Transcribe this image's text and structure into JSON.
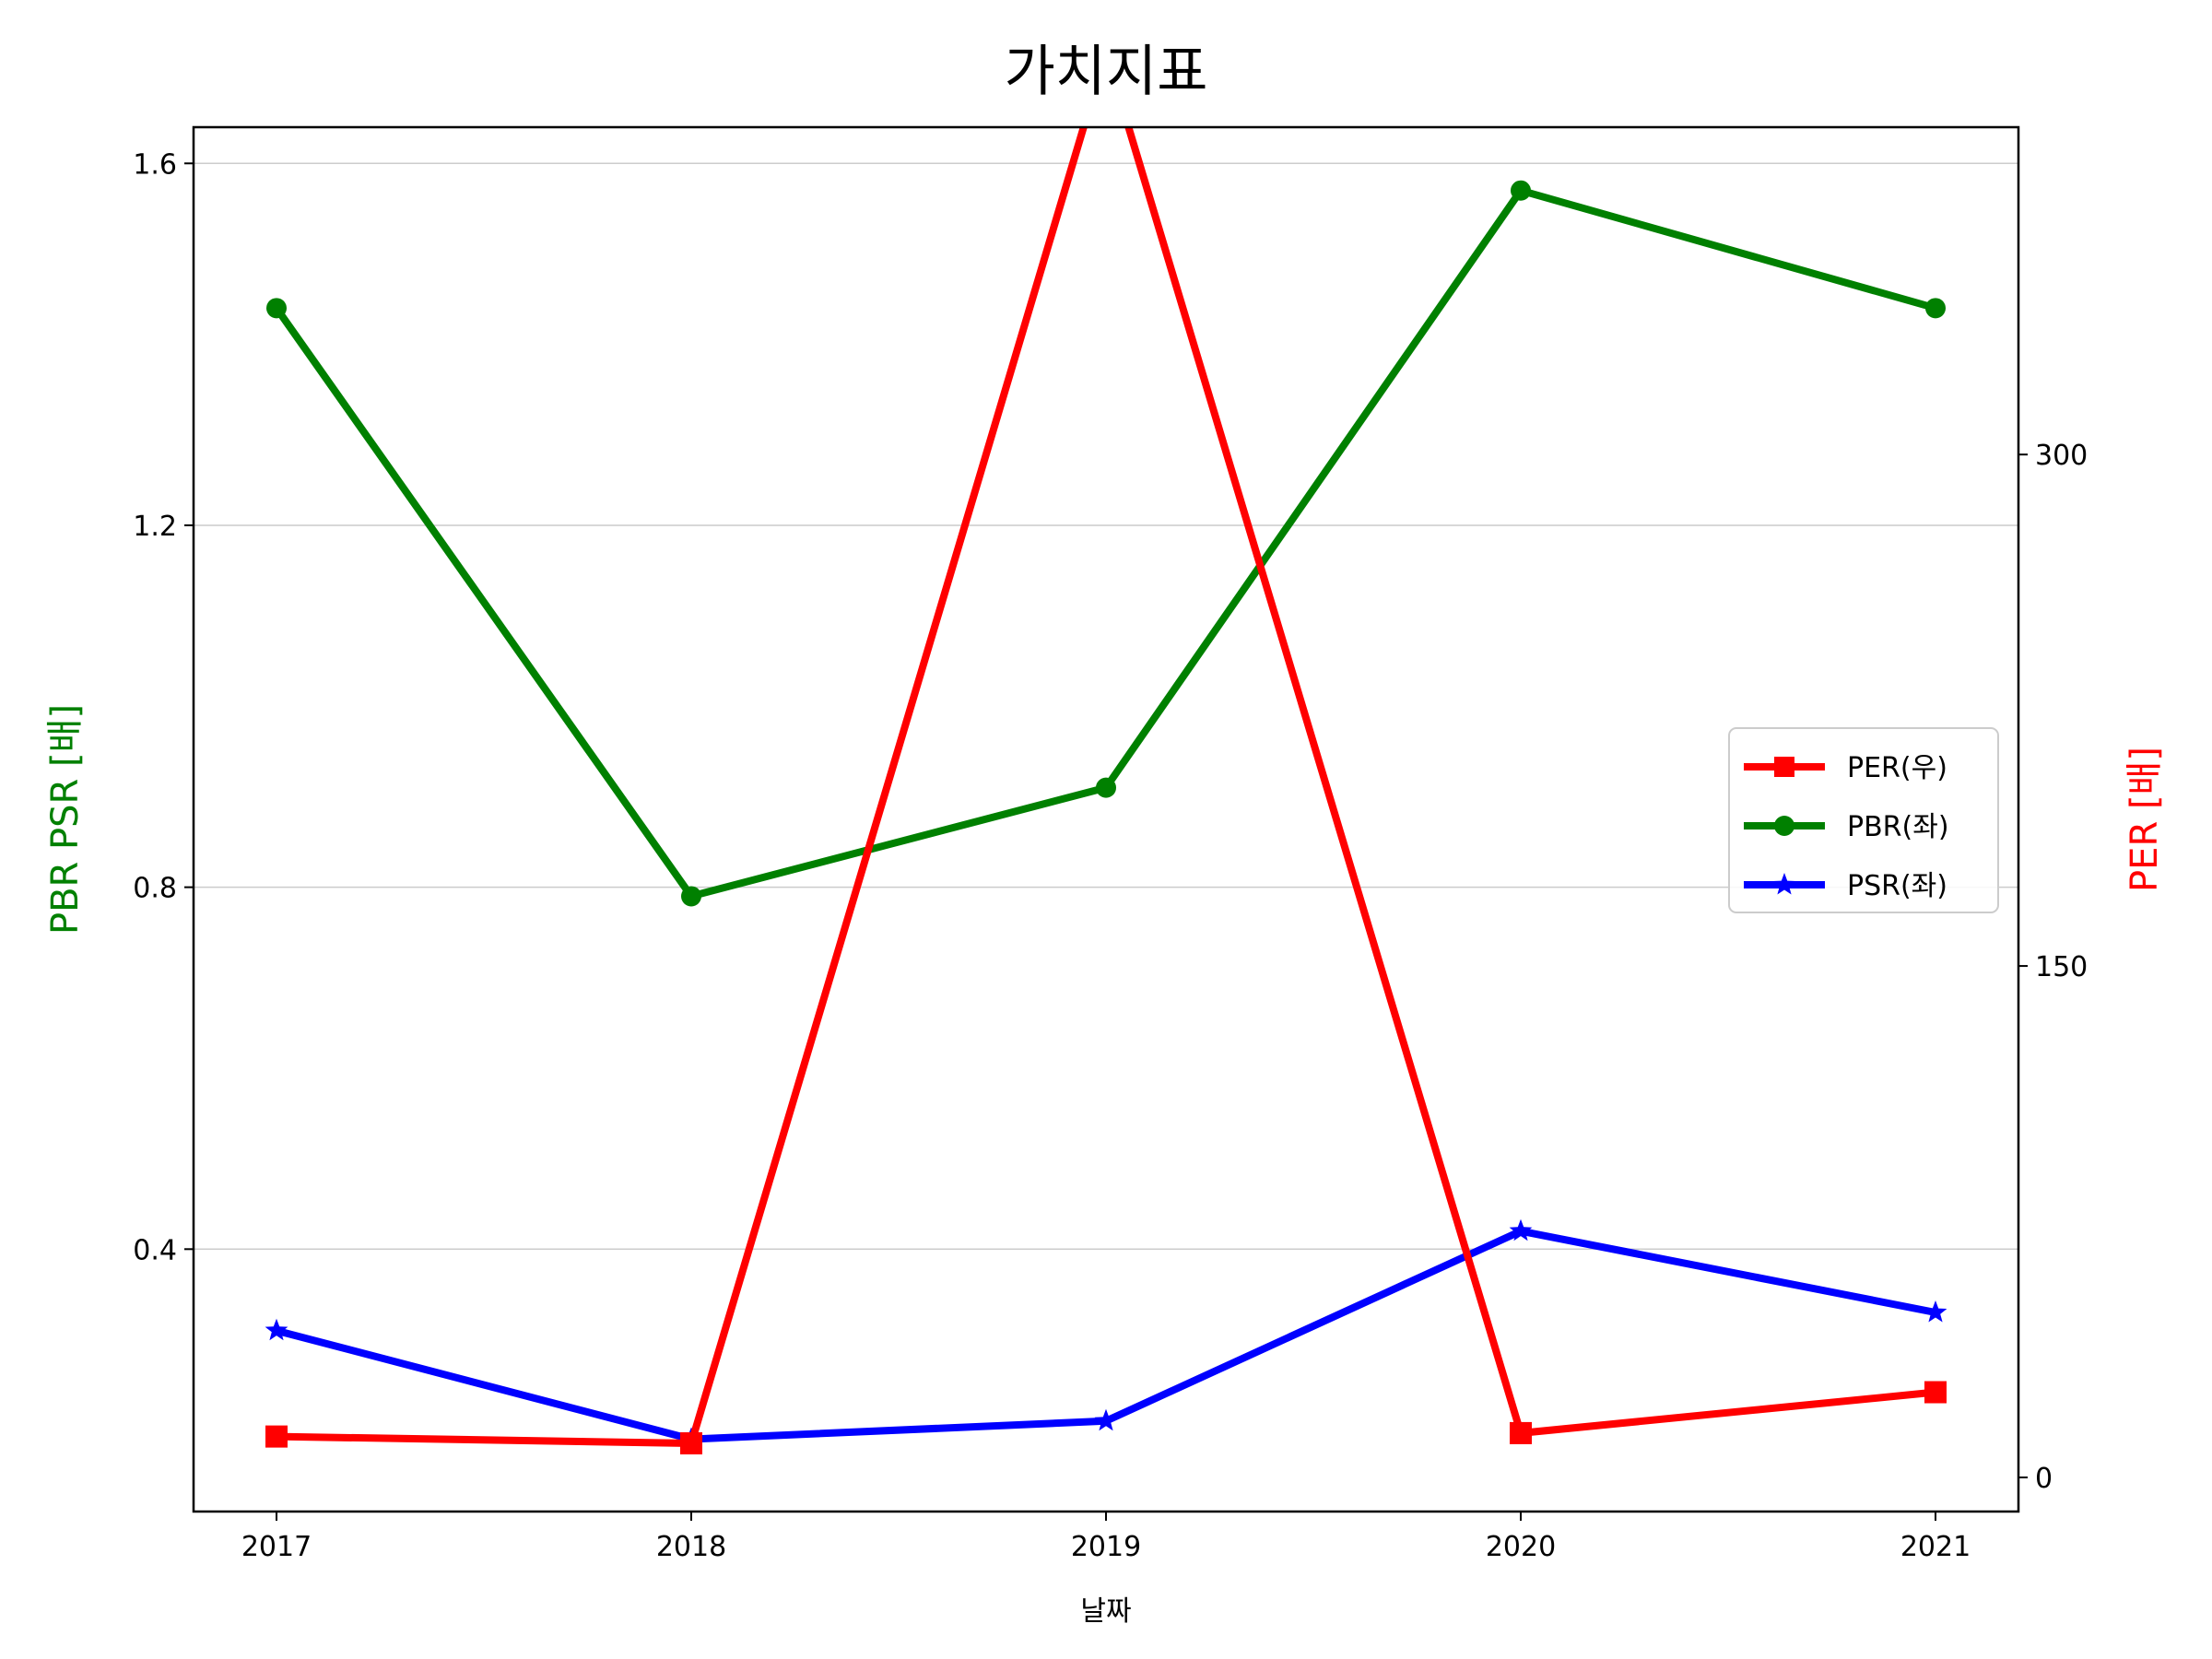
{
  "chart_data": {
    "type": "line",
    "title": "가치지표",
    "xlabel": "날짜",
    "ylabel_left": "PBR PSR [배]",
    "ylabel_right": "PER [배]",
    "x": [
      "2017",
      "2018",
      "2019",
      "2020",
      "2021"
    ],
    "ylim_left": [
      0.11,
      1.64
    ],
    "ylim_right": [
      -10,
      396
    ],
    "yticks_left": [
      0.4,
      0.8,
      1.2,
      1.6
    ],
    "yticks_right": [
      0,
      150,
      300
    ],
    "grid": "horizontal (left axis)",
    "legend_position": "center-right",
    "series": [
      {
        "name": "PER(우)",
        "axis": "right",
        "marker": "square",
        "color": "#ff0000",
        "values": [
          12,
          10,
          418,
          13,
          25
        ]
      },
      {
        "name": "PBR(좌)",
        "axis": "left",
        "marker": "circle",
        "color": "#008000",
        "values": [
          1.44,
          0.79,
          0.91,
          1.57,
          1.44
        ]
      },
      {
        "name": "PSR(좌)",
        "axis": "left",
        "marker": "star",
        "color": "#0000ff",
        "values": [
          0.31,
          0.19,
          0.21,
          0.42,
          0.33
        ]
      }
    ]
  }
}
